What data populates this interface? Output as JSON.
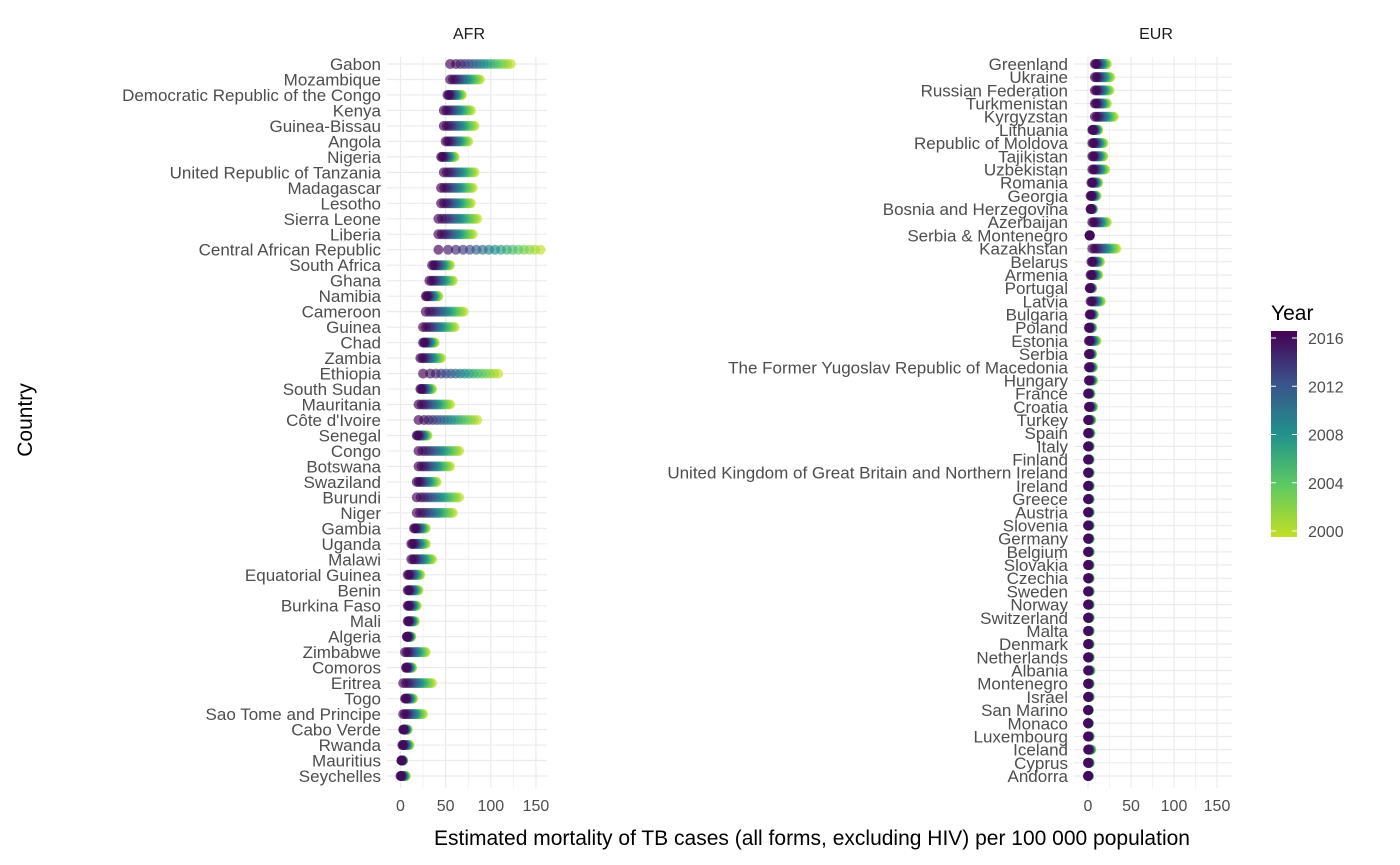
{
  "chart_data": {
    "type": "scatter",
    "xlabel": "Estimated mortality of TB cases (all forms, excluding HIV) per 100 000 population",
    "ylabel": "Country",
    "xlim": [
      -10,
      160
    ],
    "xticks": [
      0,
      50,
      100,
      150
    ],
    "grid": true,
    "legend": {
      "title": "Year",
      "placement": "right",
      "type": "colorbar",
      "range": [
        2000,
        2016
      ],
      "ticks": [
        2016,
        2012,
        2008,
        2004,
        2000
      ],
      "colors": [
        "#440154",
        "#3b528b",
        "#21918c",
        "#5ec962",
        "#c2df23"
      ]
    },
    "year_range": [
      2000,
      2016
    ],
    "panels": [
      {
        "name": "AFR",
        "countries": [
          {
            "name": "Gabon",
            "range": [
              55,
              122
            ]
          },
          {
            "name": "Mozambique",
            "range": [
              55,
              88
            ]
          },
          {
            "name": "Democratic Republic of the Congo",
            "range": [
              52,
              68
            ]
          },
          {
            "name": "Kenya",
            "range": [
              48,
              78
            ]
          },
          {
            "name": "Guinea-Bissau",
            "range": [
              48,
              82
            ]
          },
          {
            "name": "Angola",
            "range": [
              50,
              75
            ]
          },
          {
            "name": "Nigeria",
            "range": [
              45,
              60
            ]
          },
          {
            "name": "United Republic of Tanzania",
            "range": [
              48,
              82
            ]
          },
          {
            "name": "Madagascar",
            "range": [
              45,
              80
            ]
          },
          {
            "name": "Lesotho",
            "range": [
              45,
              78
            ]
          },
          {
            "name": "Sierra Leone",
            "range": [
              42,
              85
            ]
          },
          {
            "name": "Liberia",
            "range": [
              42,
              80
            ]
          },
          {
            "name": "Central African Republic",
            "range": [
              42,
              155
            ]
          },
          {
            "name": "South Africa",
            "range": [
              35,
              55
            ]
          },
          {
            "name": "Ghana",
            "range": [
              32,
              58
            ]
          },
          {
            "name": "Namibia",
            "range": [
              28,
              42
            ]
          },
          {
            "name": "Cameroon",
            "range": [
              28,
              70
            ]
          },
          {
            "name": "Guinea",
            "range": [
              25,
              60
            ]
          },
          {
            "name": "Chad",
            "range": [
              25,
              38
            ]
          },
          {
            "name": "Zambia",
            "range": [
              22,
              45
            ]
          },
          {
            "name": "Ethiopia",
            "range": [
              25,
              108
            ]
          },
          {
            "name": "South Sudan",
            "range": [
              22,
              35
            ]
          },
          {
            "name": "Mauritania",
            "range": [
              20,
              55
            ]
          },
          {
            "name": "Côte d'Ivoire",
            "range": [
              20,
              85
            ]
          },
          {
            "name": "Senegal",
            "range": [
              18,
              30
            ]
          },
          {
            "name": "Congo",
            "range": [
              20,
              65
            ]
          },
          {
            "name": "Botswana",
            "range": [
              20,
              55
            ]
          },
          {
            "name": "Swaziland",
            "range": [
              18,
              40
            ]
          },
          {
            "name": "Burundi",
            "range": [
              18,
              65
            ]
          },
          {
            "name": "Niger",
            "range": [
              18,
              58
            ]
          },
          {
            "name": "Gambia",
            "range": [
              15,
              28
            ]
          },
          {
            "name": "Uganda",
            "range": [
              12,
              28
            ]
          },
          {
            "name": "Malawi",
            "range": [
              12,
              35
            ]
          },
          {
            "name": "Equatorial Guinea",
            "range": [
              8,
              22
            ]
          },
          {
            "name": "Benin",
            "range": [
              8,
              20
            ]
          },
          {
            "name": "Burkina Faso",
            "range": [
              8,
              18
            ]
          },
          {
            "name": "Mali",
            "range": [
              8,
              16
            ]
          },
          {
            "name": "Algeria",
            "range": [
              7,
              12
            ]
          },
          {
            "name": "Zimbabwe",
            "range": [
              5,
              28
            ]
          },
          {
            "name": "Comoros",
            "range": [
              6,
              13
            ]
          },
          {
            "name": "Eritrea",
            "range": [
              3,
              35
            ]
          },
          {
            "name": "Togo",
            "range": [
              5,
              14
            ]
          },
          {
            "name": "Sao Tome and Principe",
            "range": [
              3,
              25
            ]
          },
          {
            "name": "Cabo Verde",
            "range": [
              3,
              8
            ]
          },
          {
            "name": "Rwanda",
            "range": [
              2,
              10
            ]
          },
          {
            "name": "Mauritius",
            "range": [
              1,
              3
            ]
          },
          {
            "name": "Seychelles",
            "range": [
              0,
              6
            ]
          }
        ]
      },
      {
        "name": "EUR",
        "countries": [
          {
            "name": "Greenland",
            "range": [
              8,
              22
            ]
          },
          {
            "name": "Ukraine",
            "range": [
              8,
              26
            ]
          },
          {
            "name": "Russian Federation",
            "range": [
              8,
              25
            ]
          },
          {
            "name": "Turkmenistan",
            "range": [
              8,
              22
            ]
          },
          {
            "name": "Kyrgyzstan",
            "range": [
              8,
              30
            ]
          },
          {
            "name": "Lithuania",
            "range": [
              5,
              12
            ]
          },
          {
            "name": "Republic of Moldova",
            "range": [
              5,
              18
            ]
          },
          {
            "name": "Tajikistan",
            "range": [
              5,
              18
            ]
          },
          {
            "name": "Uzbekistan",
            "range": [
              5,
              20
            ]
          },
          {
            "name": "Romania",
            "range": [
              4,
              12
            ]
          },
          {
            "name": "Georgia",
            "range": [
              3,
              10
            ]
          },
          {
            "name": "Bosnia and Herzegovina",
            "range": [
              3,
              6
            ]
          },
          {
            "name": "Azerbaijan",
            "range": [
              5,
              22
            ]
          },
          {
            "name": "Serbia & Montenegro",
            "range": [
              2,
              2
            ]
          },
          {
            "name": "Kazakhstan",
            "range": [
              5,
              33
            ]
          },
          {
            "name": "Belarus",
            "range": [
              4,
              14
            ]
          },
          {
            "name": "Armenia",
            "range": [
              3,
              12
            ]
          },
          {
            "name": "Portugal",
            "range": [
              2,
              5
            ]
          },
          {
            "name": "Latvia",
            "range": [
              3,
              15
            ]
          },
          {
            "name": "Bulgaria",
            "range": [
              2,
              7
            ]
          },
          {
            "name": "Poland",
            "range": [
              1,
              5
            ]
          },
          {
            "name": "Estonia",
            "range": [
              1,
              10
            ]
          },
          {
            "name": "Serbia",
            "range": [
              1,
              5
            ]
          },
          {
            "name": "The Former Yugoslav Republic of Macedonia",
            "range": [
              1,
              6
            ]
          },
          {
            "name": "Hungary",
            "range": [
              1,
              6
            ]
          },
          {
            "name": "France",
            "range": [
              0,
              3
            ]
          },
          {
            "name": "Croatia",
            "range": [
              1,
              6
            ]
          },
          {
            "name": "Turkey",
            "range": [
              0,
              4
            ]
          },
          {
            "name": "Spain",
            "range": [
              0,
              3
            ]
          },
          {
            "name": "Italy",
            "range": [
              0,
              2
            ]
          },
          {
            "name": "Finland",
            "range": [
              0,
              2
            ]
          },
          {
            "name": "United Kingdom of Great Britain and Northern Ireland",
            "range": [
              0,
              2
            ]
          },
          {
            "name": "Ireland",
            "range": [
              0,
              2
            ]
          },
          {
            "name": "Greece",
            "range": [
              0,
              2
            ]
          },
          {
            "name": "Austria",
            "range": [
              0,
              2
            ]
          },
          {
            "name": "Slovenia",
            "range": [
              0,
              2
            ]
          },
          {
            "name": "Germany",
            "range": [
              0,
              2
            ]
          },
          {
            "name": "Belgium",
            "range": [
              0,
              2
            ]
          },
          {
            "name": "Slovakia",
            "range": [
              0,
              2
            ]
          },
          {
            "name": "Czechia",
            "range": [
              0,
              2
            ]
          },
          {
            "name": "Sweden",
            "range": [
              0,
              2
            ]
          },
          {
            "name": "Norway",
            "range": [
              0,
              2
            ]
          },
          {
            "name": "Switzerland",
            "range": [
              0,
              2
            ]
          },
          {
            "name": "Malta",
            "range": [
              0,
              2
            ]
          },
          {
            "name": "Denmark",
            "range": [
              0,
              2
            ]
          },
          {
            "name": "Netherlands",
            "range": [
              0,
              2
            ]
          },
          {
            "name": "Albania",
            "range": [
              0,
              3
            ]
          },
          {
            "name": "Montenegro",
            "range": [
              0,
              2
            ]
          },
          {
            "name": "Israel",
            "range": [
              0,
              2
            ]
          },
          {
            "name": "San Marino",
            "range": [
              0,
              1
            ]
          },
          {
            "name": "Monaco",
            "range": [
              0,
              1
            ]
          },
          {
            "name": "Luxembourg",
            "range": [
              0,
              2
            ]
          },
          {
            "name": "Iceland",
            "range": [
              0,
              4
            ]
          },
          {
            "name": "Cyprus",
            "range": [
              0,
              2
            ]
          },
          {
            "name": "Andorra",
            "range": [
              0,
              1
            ]
          }
        ]
      }
    ]
  }
}
